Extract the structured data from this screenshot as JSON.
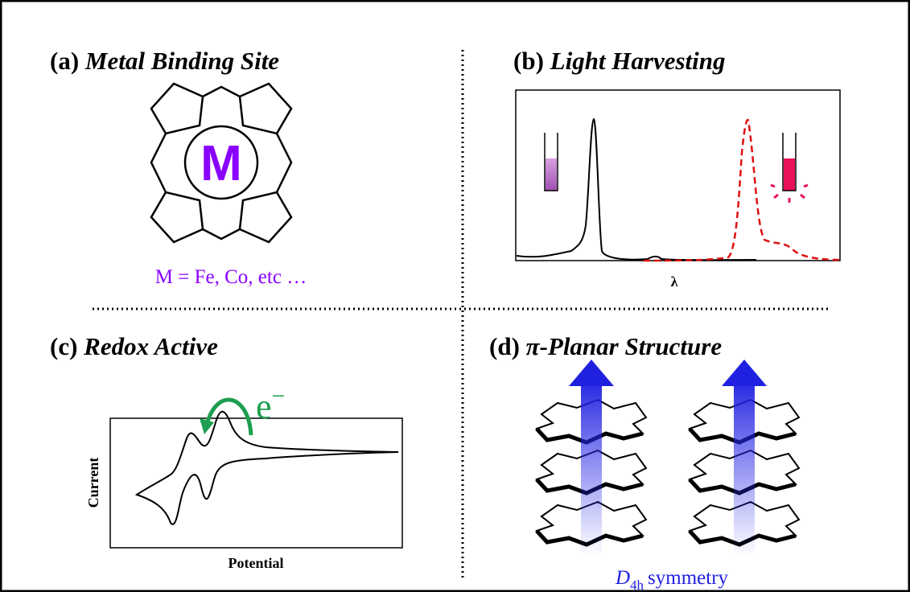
{
  "panels": [
    {
      "label": "(a)",
      "title": "Metal Binding Site",
      "center": "M",
      "caption": "M = Fe, Co, etc …"
    },
    {
      "label": "(b)",
      "title": "Light Harvesting",
      "x_axis": "λ"
    },
    {
      "label": "(c)",
      "title": "Redox Active",
      "electron": "e",
      "charge": "−",
      "y_axis": "Current",
      "x_axis": "Potential"
    },
    {
      "label": "(d)",
      "title": "π-Planar Structure",
      "symmetry_symbol": "D",
      "symmetry_subscript": "4h",
      "symmetry_word": "symmetry"
    }
  ]
}
